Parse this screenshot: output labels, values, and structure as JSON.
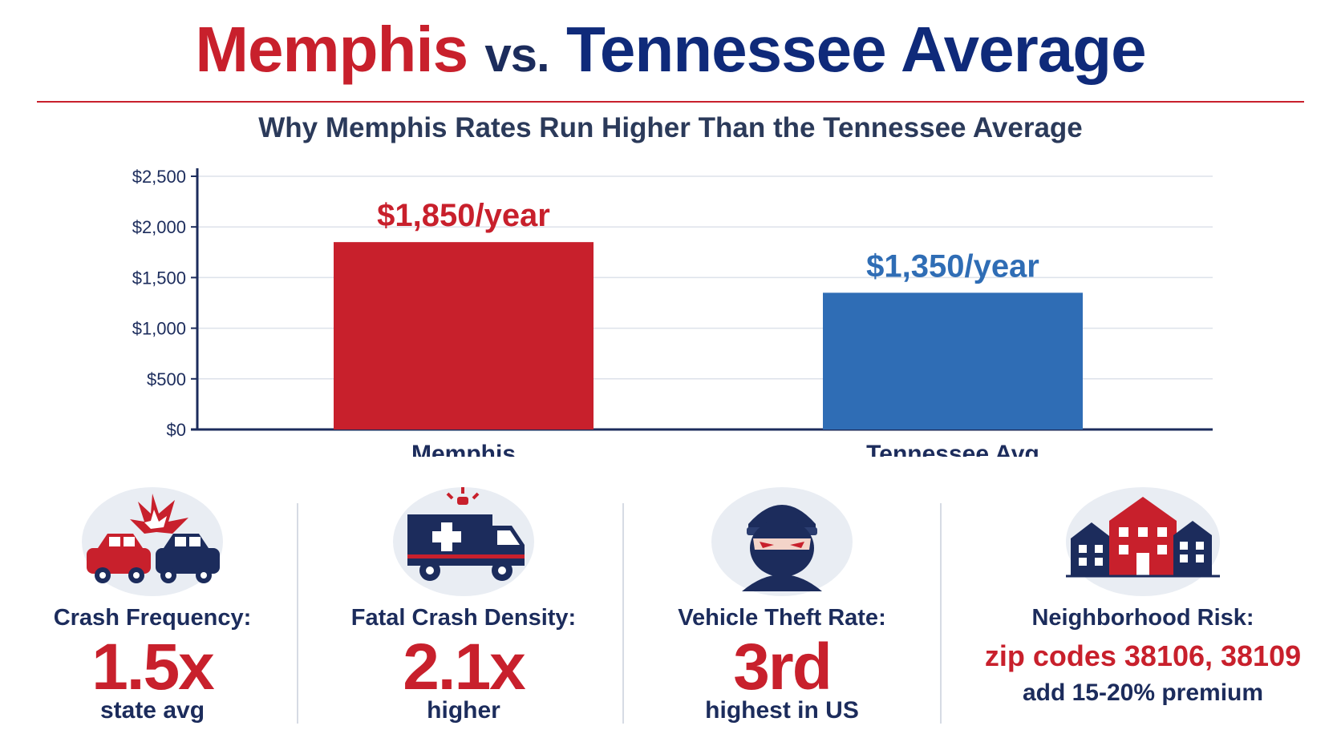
{
  "header": {
    "title_part1": "Memphis",
    "title_part2": "vs.",
    "title_part3": "Tennessee Average",
    "subtitle": "Why Memphis Rates Run Higher Than the Tennessee Average"
  },
  "colors": {
    "memphis_red": "#c8202c",
    "tennessee_blue": "#2f6db5",
    "navy": "#1c2c5c"
  },
  "chart_data": {
    "type": "bar",
    "categories": [
      "Memphis",
      "Tennessee Avg"
    ],
    "values": [
      1850,
      1350
    ],
    "data_labels": [
      "$1,850/year",
      "$1,350/year"
    ],
    "bar_colors": [
      "#c8202c",
      "#2f6db5"
    ],
    "ylim": [
      0,
      2500
    ],
    "yticks": [
      0,
      500,
      1000,
      1500,
      2000,
      2500
    ],
    "ytick_labels": [
      "$0",
      "$500",
      "$1,000",
      "$1,500",
      "$2,000",
      "$2,500"
    ],
    "grid": true
  },
  "stats": [
    {
      "icon": "car-crash-icon",
      "label": "Crash Frequency:",
      "value": "1.5x",
      "note": "state avg"
    },
    {
      "icon": "ambulance-icon",
      "label": "Fatal Crash Density:",
      "value": "2.1x",
      "note": "higher"
    },
    {
      "icon": "thief-icon",
      "label": "Vehicle Theft Rate:",
      "value": "3rd",
      "note": "highest in US"
    },
    {
      "icon": "neighborhood-icon",
      "label": "Neighborhood Risk:",
      "zip": "zip codes 38106, 38109",
      "note": "add 15-20% premium"
    }
  ]
}
